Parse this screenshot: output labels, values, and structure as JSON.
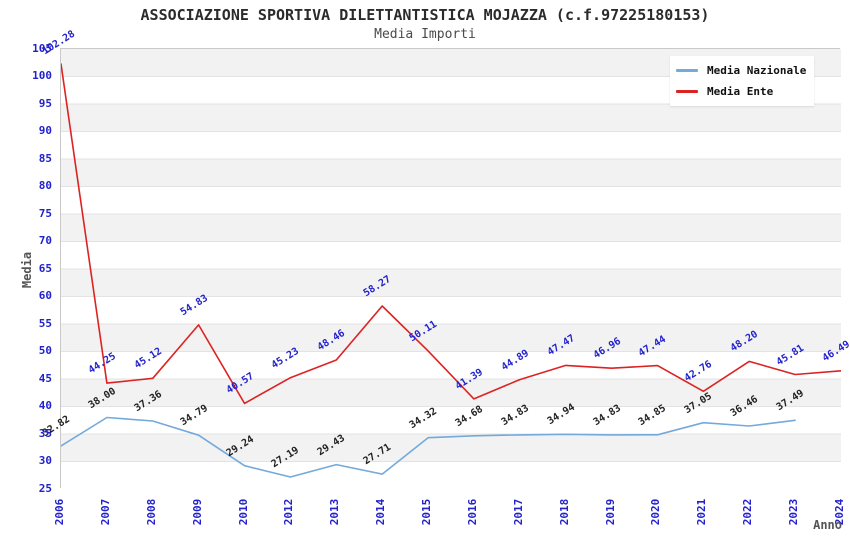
{
  "header": {
    "title": "ASSOCIAZIONE SPORTIVA DILETTANTISTICA MOJAZZA (c.f.97225180153)",
    "subtitle": "Media Importi"
  },
  "axes": {
    "ylabel": "Media",
    "xlabel": "Anno",
    "tick_color": "#2222cc"
  },
  "legend": {
    "position": "top-right",
    "items": [
      {
        "label": "Media Nazionale",
        "color": "#74a9dc"
      },
      {
        "label": "Media Ente",
        "color": "#dd2222"
      }
    ]
  },
  "chart_data": {
    "type": "line",
    "title": "ASSOCIAZIONE SPORTIVA DILETTANTISTICA MOJAZZA (c.f.97225180153)",
    "subtitle": "Media Importi",
    "xlabel": "Anno",
    "ylabel": "Media",
    "categories": [
      "2006",
      "2007",
      "2008",
      "2009",
      "2010",
      "2012",
      "2013",
      "2014",
      "2015",
      "2016",
      "2017",
      "2018",
      "2019",
      "2020",
      "2021",
      "2022",
      "2023",
      "2024"
    ],
    "series": [
      {
        "name": "Media Nazionale",
        "color": "#74a9dc",
        "label_color": "#222222",
        "values": [
          32.82,
          38.0,
          37.36,
          34.79,
          29.24,
          27.19,
          29.43,
          27.71,
          34.32,
          34.68,
          34.83,
          34.94,
          34.83,
          34.85,
          37.05,
          36.46,
          37.49,
          null
        ]
      },
      {
        "name": "Media Ente",
        "color": "#dd2222",
        "label_color": "#2222cc",
        "values": [
          102.28,
          44.25,
          45.12,
          54.83,
          40.57,
          45.23,
          48.46,
          58.27,
          50.11,
          41.39,
          44.89,
          47.47,
          46.96,
          47.44,
          42.76,
          48.2,
          45.81,
          46.49
        ]
      }
    ],
    "ylim": [
      25,
      105
    ],
    "ytick_step": 5,
    "grid": "horizontal-alternating-bands",
    "band_colors": [
      "#f2f2f2",
      "#ffffff"
    ],
    "gridline_color": "#e3e3e3",
    "value_labels": "each point labeled with value to 2 decimals, rotated",
    "legend_position": "top-right"
  }
}
